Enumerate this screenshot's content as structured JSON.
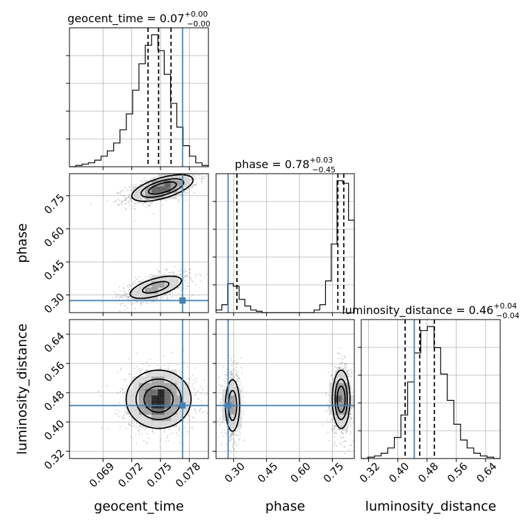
{
  "chart_data": {
    "type": "corner",
    "colors": {
      "truth": "#4682b4",
      "ink": "#000000",
      "grid": "#b0b0b0",
      "hist": "#000000"
    },
    "parameters": [
      {
        "name": "geocent_time",
        "axis_label": "geocent_time",
        "title": {
          "base": "geocent_time = 0.07",
          "plus": "+0.00",
          "minus": "−0.00"
        },
        "range": [
          0.0655,
          0.08
        ],
        "ticks": [
          0.069,
          0.072,
          0.075,
          0.078
        ],
        "tick_labels": [
          "0.069",
          "0.072",
          "0.075",
          "0.078"
        ],
        "truth": 0.0773,
        "quantiles": [
          0.0737,
          0.0748,
          0.0761
        ],
        "histogram": [
          0,
          1,
          2,
          3,
          5,
          8,
          12,
          18,
          28,
          40,
          58,
          78,
          92,
          100,
          88,
          70,
          48,
          30,
          16,
          8,
          3,
          1
        ]
      },
      {
        "name": "phase",
        "axis_label": "phase",
        "title": {
          "base": "phase = 0.78",
          "plus": "+0.03",
          "minus": "−0.45"
        },
        "range": [
          0.22,
          0.85
        ],
        "ticks": [
          0.3,
          0.45,
          0.6,
          0.75
        ],
        "tick_labels": [
          "0.30",
          "0.45",
          "0.60",
          "0.75"
        ],
        "truth": 0.275,
        "quantiles": [
          0.315,
          0.775,
          0.802
        ],
        "histogram": [
          2,
          6,
          22,
          20,
          10,
          5,
          2,
          1,
          0,
          0,
          0,
          0,
          0,
          0,
          0,
          0,
          0,
          2,
          6,
          24,
          52,
          100,
          98,
          70
        ]
      },
      {
        "name": "luminosity_distance",
        "axis_label": "luminosity_distance",
        "title": {
          "base": "luminosity_distance = 0.46",
          "plus": "+0.04",
          "minus": "−0.04"
        },
        "range": [
          0.3,
          0.68
        ],
        "ticks": [
          0.32,
          0.4,
          0.48,
          0.56,
          0.64
        ],
        "tick_labels": [
          "0.32",
          "0.40",
          "0.48",
          "0.56",
          "0.64"
        ],
        "truth": 0.445,
        "quantiles": [
          0.42,
          0.46,
          0.5
        ],
        "histogram": [
          0,
          1,
          2,
          4,
          8,
          16,
          33,
          58,
          80,
          97,
          100,
          84,
          64,
          44,
          26,
          14,
          8,
          4,
          2,
          1,
          0
        ]
      }
    ],
    "pairs": [
      {
        "x": "geocent_time",
        "y": "phase",
        "modes": [
          {
            "cx": 0.0752,
            "cy": 0.785,
            "sx": 0.0016,
            "sy": 0.03,
            "rho": 0.6,
            "w": 1.0
          },
          {
            "cx": 0.0745,
            "cy": 0.335,
            "sx": 0.0016,
            "sy": 0.03,
            "rho": 0.6,
            "w": 0.55
          }
        ]
      },
      {
        "x": "geocent_time",
        "y": "luminosity_distance",
        "modes": [
          {
            "cx": 0.0748,
            "cy": 0.462,
            "sx": 0.0017,
            "sy": 0.04,
            "rho": 0.0,
            "w": 1.0
          }
        ]
      },
      {
        "x": "phase",
        "y": "luminosity_distance",
        "modes": [
          {
            "cx": 0.295,
            "cy": 0.445,
            "sx": 0.018,
            "sy": 0.04,
            "rho": 0.0,
            "w": 0.65
          },
          {
            "cx": 0.79,
            "cy": 0.462,
            "sx": 0.02,
            "sy": 0.04,
            "rho": 0.0,
            "w": 1.0
          }
        ]
      }
    ],
    "grid": true
  }
}
